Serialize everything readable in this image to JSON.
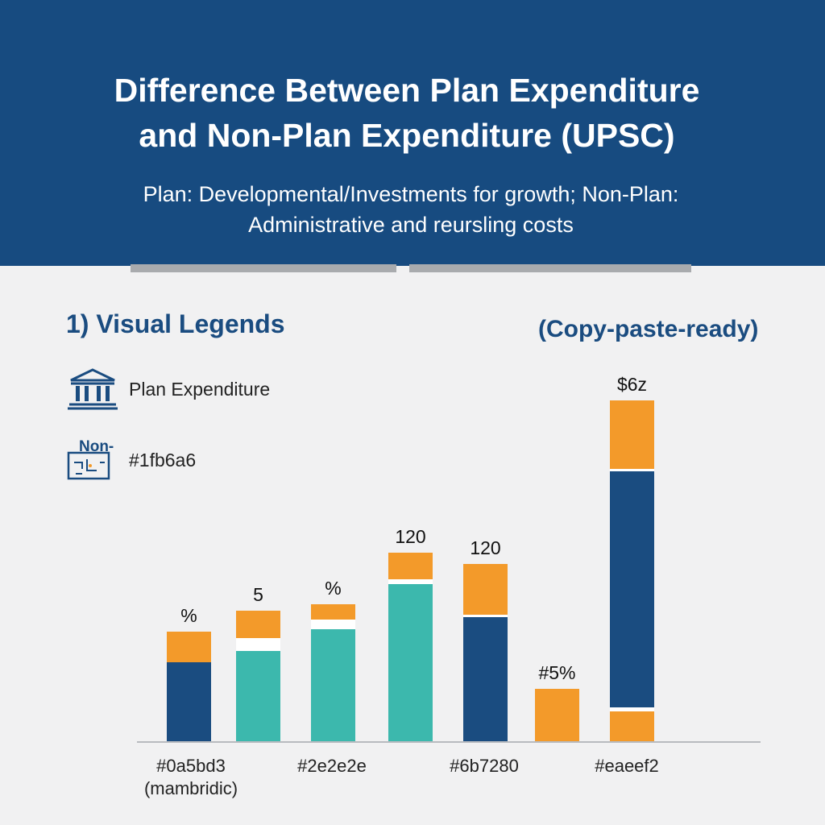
{
  "header": {
    "title_line1": "Difference Between Plan Expenditure",
    "title_line2": "and Non-Plan Expenditure (UPSC)",
    "subtitle_line1": "Plan: Developmental/Investments for growth; Non-Plan:",
    "subtitle_line2": "Administrative and reursling costs"
  },
  "section": {
    "title": "1) Visual Legends",
    "note": "(Copy-paste-ready)"
  },
  "legend": {
    "items": [
      {
        "icon": "bank-building-icon",
        "label": "Plan Expenditure"
      },
      {
        "icon": "blueprint-icon",
        "icon_text": "Non-",
        "label": "#1fb6a6"
      }
    ]
  },
  "colors": {
    "header": "#174b80",
    "navy": "#1a4c80",
    "teal": "#3cb8ad",
    "orange": "#f39a2a",
    "divider": "#ffffff"
  },
  "chart_data": {
    "type": "bar",
    "stacked": true,
    "title": "",
    "xlabel": "",
    "ylabel": "",
    "ylim": [
      0,
      430
    ],
    "grid": false,
    "bars": [
      {
        "base_color": "teal_or_navy",
        "segments": [
          {
            "color": "#1a4c80",
            "value": 98
          },
          {
            "color": "#f39a2a",
            "value": 38
          }
        ],
        "label": "%"
      },
      {
        "segments": [
          {
            "color": "#3cb8ad",
            "value": 112
          },
          {
            "color": "#ffffff",
            "value": 16
          },
          {
            "color": "#f39a2a",
            "value": 34
          }
        ],
        "label": "5"
      },
      {
        "segments": [
          {
            "color": "#3cb8ad",
            "value": 139
          },
          {
            "color": "#ffffff",
            "value": 12
          },
          {
            "color": "#f39a2a",
            "value": 19
          }
        ],
        "label": "%"
      },
      {
        "segments": [
          {
            "color": "#3cb8ad",
            "value": 195
          },
          {
            "color": "#ffffff",
            "value": 6
          },
          {
            "color": "#f39a2a",
            "value": 33
          }
        ],
        "label": "120"
      },
      {
        "segments": [
          {
            "color": "#1a4c80",
            "value": 154
          },
          {
            "color": "#ffffff",
            "value": 3
          },
          {
            "color": "#f39a2a",
            "value": 63
          }
        ],
        "label": "120"
      },
      {
        "segments": [
          {
            "color": "#f39a2a",
            "value": 65
          }
        ],
        "label": "#5%"
      },
      {
        "segments": [
          {
            "color": "#f39a2a",
            "value": 37
          },
          {
            "color": "#ffffff",
            "value": 5
          },
          {
            "color": "#1a4c80",
            "value": 293
          },
          {
            "color": "#ffffff",
            "value": 3
          },
          {
            "color": "#f39a2a",
            "value": 85
          }
        ],
        "label": "$6z"
      }
    ],
    "x_labels": [
      {
        "after_bar": 0,
        "line1": "#0a5bd3",
        "line2": "(mambridic)"
      },
      {
        "after_bar": 2,
        "line1": "#2e2e2e",
        "line2": ""
      },
      {
        "after_bar": 4,
        "line1": "#6b7280",
        "line2": ""
      },
      {
        "after_bar": 6,
        "line1": "#eaeef2",
        "line2": ""
      }
    ]
  }
}
